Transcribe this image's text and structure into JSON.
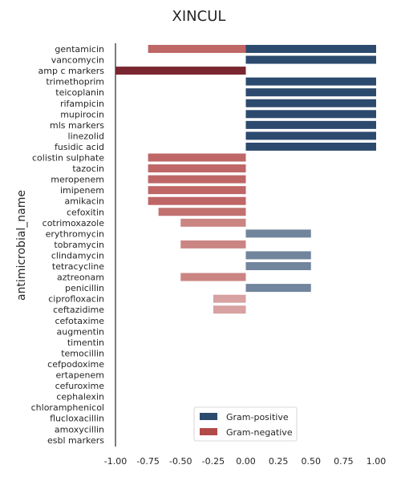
{
  "chart_data": {
    "type": "bar",
    "orientation": "horizontal",
    "title": "XINCUL",
    "xlabel": "",
    "ylabel": "antimicrobial_name",
    "xlim": [
      -1.0,
      1.0
    ],
    "xticks": [
      "-1.00",
      "-0.75",
      "-0.50",
      "-0.25",
      "0.00",
      "0.25",
      "0.50",
      "0.75",
      "1.00"
    ],
    "xtick_values": [
      -1.0,
      -0.75,
      -0.5,
      -0.25,
      0.0,
      0.25,
      0.5,
      0.75,
      1.0
    ],
    "grid": false,
    "legend_position": "bottom-center",
    "categories": [
      "gentamicin",
      "vancomycin",
      "amp c markers",
      "trimethoprim",
      "teicoplanin",
      "rifampicin",
      "mupirocin",
      "mls markers",
      "linezolid",
      "fusidic acid",
      "colistin sulphate",
      "tazocin",
      "meropenem",
      "imipenem",
      "amikacin",
      "cefoxitin",
      "cotrimoxazole",
      "erythromycin",
      "tobramycin",
      "clindamycin",
      "tetracycline",
      "aztreonam",
      "penicillin",
      "ciprofloxacin",
      "ceftazidime",
      "cefotaxime",
      "augmentin",
      "timentin",
      "temocillin",
      "cefpodoxime",
      "ertapenem",
      "cefuroxime",
      "cephalexin",
      "chloramphenicol",
      "flucloxacillin",
      "amoxycillin",
      "esbl markers"
    ],
    "series": [
      {
        "name": "Gram-positive",
        "color": "#2c4a6e",
        "values": [
          1.0,
          1.0,
          null,
          1.0,
          1.0,
          1.0,
          1.0,
          1.0,
          1.0,
          1.0,
          null,
          null,
          null,
          null,
          null,
          null,
          null,
          0.5,
          null,
          0.5,
          0.5,
          null,
          0.5,
          null,
          null,
          null,
          null,
          null,
          null,
          null,
          null,
          null,
          null,
          null,
          null,
          null,
          null
        ]
      },
      {
        "name": "Gram-negative",
        "color": "#b14a48",
        "values": [
          -0.75,
          null,
          -1.0,
          null,
          null,
          null,
          null,
          null,
          null,
          null,
          -0.75,
          -0.75,
          -0.75,
          -0.75,
          -0.75,
          -0.67,
          -0.5,
          null,
          -0.5,
          null,
          null,
          -0.5,
          null,
          -0.25,
          -0.25,
          null,
          null,
          null,
          null,
          null,
          null,
          null,
          null,
          null,
          null,
          null,
          null
        ]
      }
    ]
  }
}
